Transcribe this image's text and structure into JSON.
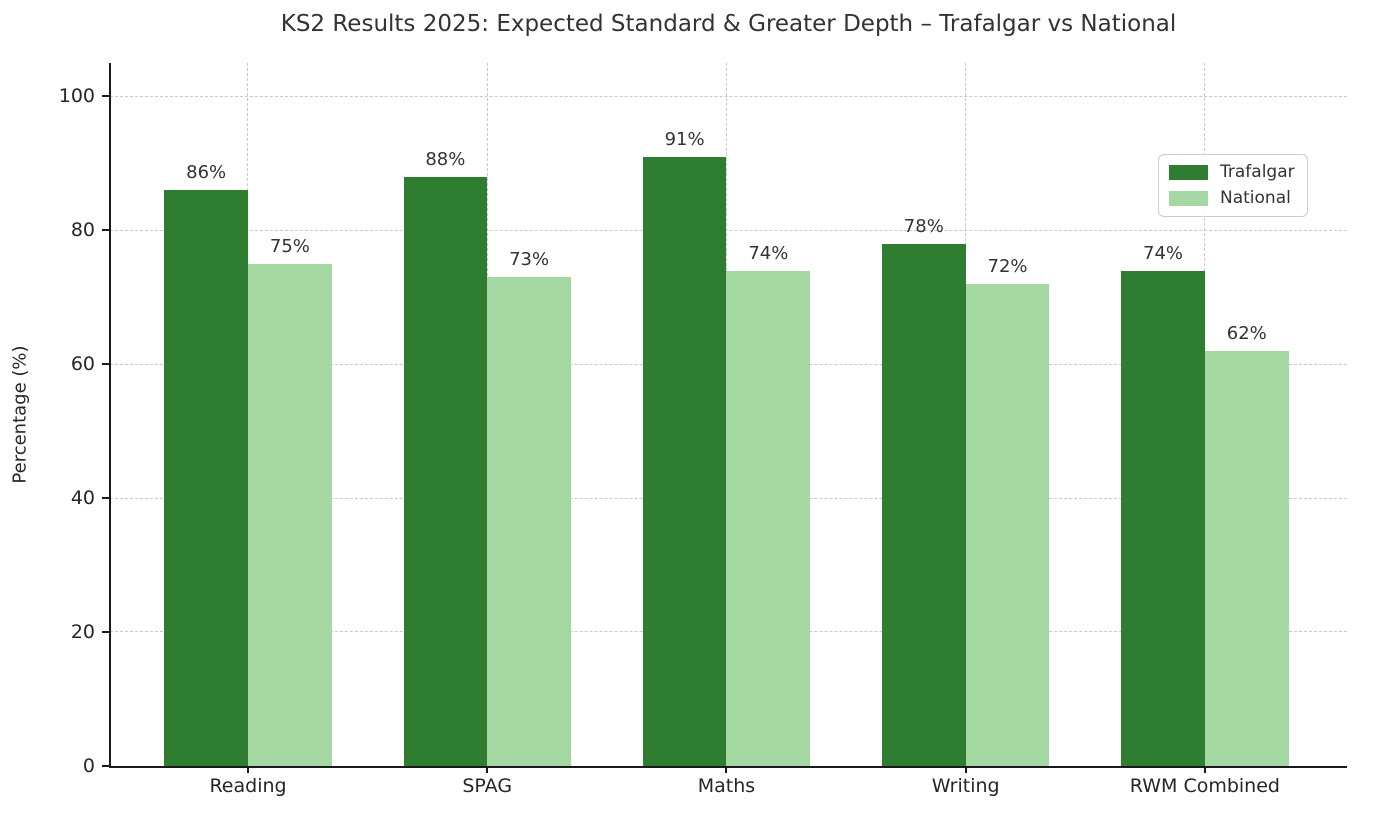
{
  "chart_data": {
    "type": "bar",
    "title": "KS2 Results 2025: Expected Standard & Greater Depth – Trafalgar vs National",
    "categories": [
      "Reading",
      "SPAG",
      "Maths",
      "Writing",
      "RWM Combined"
    ],
    "series": [
      {
        "name": "Trafalgar",
        "color": "#2e7d31",
        "values": [
          86,
          88,
          91,
          78,
          74
        ]
      },
      {
        "name": "National",
        "color": "#a4d7a1",
        "values": [
          75,
          73,
          74,
          72,
          62
        ]
      }
    ],
    "value_labels": {
      "Trafalgar": [
        "86%",
        "88%",
        "91%",
        "78%",
        "74%"
      ],
      "National": [
        "75%",
        "73%",
        "74%",
        "72%",
        "62%"
      ]
    },
    "xlabel": "",
    "ylabel": "Percentage (%)",
    "ylim": [
      0,
      105
    ],
    "yticks": [
      0,
      20,
      40,
      60,
      80,
      100
    ],
    "bar_width": 0.35,
    "grid": {
      "horizontal": true,
      "vertical": true,
      "style": "dashed",
      "color": "#c9c9c9",
      "axisbelow": true
    },
    "legend": {
      "position": "upper right",
      "entries": [
        "Trafalgar",
        "National"
      ]
    }
  }
}
